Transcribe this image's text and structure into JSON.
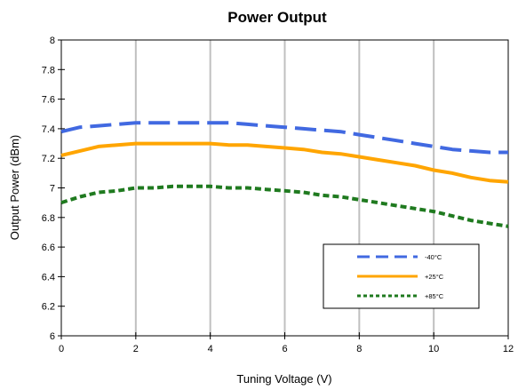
{
  "chart_data": {
    "type": "line",
    "title": "Power Output",
    "xlabel": "Tuning Voltage (V)",
    "ylabel": "Output Power (dBm)",
    "xlim": [
      0,
      12
    ],
    "ylim": [
      6,
      8
    ],
    "x_ticks": [
      "0",
      "2",
      "4",
      "6",
      "8",
      "10",
      "12"
    ],
    "y_ticks": [
      "6",
      "6.2",
      "6.4",
      "6.6",
      "6.8",
      "7",
      "7.2",
      "7.4",
      "7.6",
      "7.8",
      "8"
    ],
    "grid": "vertical",
    "legend_position": "bottom-right",
    "x": [
      0,
      0.5,
      1,
      1.5,
      2,
      2.5,
      3,
      3.5,
      4,
      4.5,
      5,
      5.5,
      6,
      6.5,
      7,
      7.5,
      8,
      8.5,
      9,
      9.5,
      10,
      10.5,
      11,
      11.5,
      12
    ],
    "series": [
      {
        "name": "-40°C",
        "color": "#4169E1",
        "dash": "long-dash",
        "values": [
          7.38,
          7.41,
          7.42,
          7.43,
          7.44,
          7.44,
          7.44,
          7.44,
          7.44,
          7.44,
          7.43,
          7.42,
          7.41,
          7.4,
          7.39,
          7.38,
          7.36,
          7.34,
          7.32,
          7.3,
          7.28,
          7.26,
          7.25,
          7.24,
          7.24
        ]
      },
      {
        "name": "+25°C",
        "color": "#FFA500",
        "dash": "solid",
        "values": [
          7.22,
          7.25,
          7.28,
          7.29,
          7.3,
          7.3,
          7.3,
          7.3,
          7.3,
          7.29,
          7.29,
          7.28,
          7.27,
          7.26,
          7.24,
          7.23,
          7.21,
          7.19,
          7.17,
          7.15,
          7.12,
          7.1,
          7.07,
          7.05,
          7.04
        ]
      },
      {
        "name": "+85°C",
        "color": "#1F7A1F",
        "dash": "short-dash",
        "values": [
          6.9,
          6.94,
          6.97,
          6.98,
          7.0,
          7.0,
          7.01,
          7.01,
          7.01,
          7.0,
          7.0,
          6.99,
          6.98,
          6.97,
          6.95,
          6.94,
          6.92,
          6.9,
          6.88,
          6.86,
          6.84,
          6.81,
          6.78,
          6.76,
          6.74
        ]
      }
    ]
  }
}
